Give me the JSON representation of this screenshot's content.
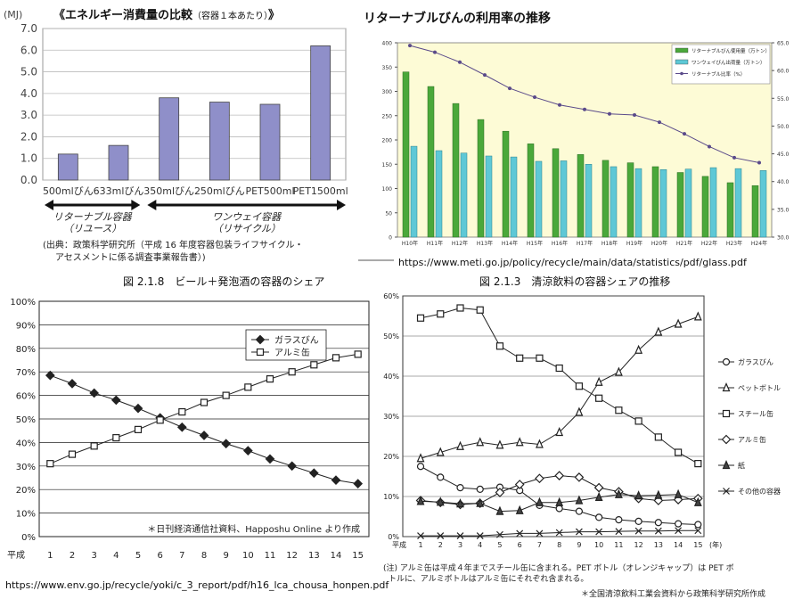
{
  "urls": {
    "meti": "https://www.meti.go.jp/policy/recycle/main/data/statistics/pdf/glass.pdf",
    "env": "https://www.env.go.jp/recycle/yoki/c_3_report/pdf/h16_lca_chousa_honpen.pdf"
  },
  "captions": {
    "beer": "図 2.1.8　ビール＋発泡酒の容器のシェア",
    "soft": "図 2.1.3　清涼飲料の容器シェアの推移"
  },
  "chart_data": [
    {
      "type": "bar",
      "title": "《エネルギー消費量の比較",
      "title_sub": "（容器１本あたり）",
      "title_end": "》",
      "ylabel": "(MJ)",
      "ylim": [
        0,
        7
      ],
      "yticks": [
        "0.0",
        "1.0",
        "2.0",
        "3.0",
        "4.0",
        "5.0",
        "6.0",
        "7.0"
      ],
      "categories": [
        "500mlびん",
        "633mlびん",
        "350mlびん",
        "250mlびん",
        "PET500ml",
        "PET1500ml"
      ],
      "values": [
        1.2,
        1.6,
        3.8,
        3.6,
        3.5,
        6.2
      ],
      "color": "#8f8fc9",
      "groups": [
        {
          "label": "リターナブル容器",
          "sub": "（リユース）"
        },
        {
          "label": "ワンウェイ容器",
          "sub": "（リサイクル）"
        }
      ],
      "source_line1": "(出典：政策科学研究所（平成 16 年度容器包装ライフサイクル・",
      "source_line2": "アセスメントに係る調査事業報告書）)"
    },
    {
      "type": "bar",
      "title": "リターナブルびんの利用率の推移",
      "categories": [
        "H10年",
        "H11年",
        "H12年",
        "H13年",
        "H14年",
        "H15年",
        "H16年",
        "H17年",
        "H18年",
        "H19年",
        "H20年",
        "H21年",
        "H22年",
        "H23年",
        "H24年"
      ],
      "ylim": [
        0,
        400
      ],
      "yticks": [
        "0",
        "50",
        "100",
        "150",
        "200",
        "250",
        "300",
        "350",
        "400"
      ],
      "y2lim": [
        30,
        65
      ],
      "y2ticks": [
        "30.0",
        "35.0",
        "40.0",
        "45.0",
        "50.0",
        "55.0",
        "60.0",
        "65.0"
      ],
      "series": [
        {
          "name": "リターナブルびん使用量（万トン）",
          "color": "#4aa83a",
          "values": [
            340,
            310,
            275,
            242,
            218,
            192,
            182,
            170,
            158,
            153,
            145,
            133,
            125,
            112,
            106
          ]
        },
        {
          "name": "ワンウェイびん出荷量（万トン）",
          "color": "#5ec8d6",
          "values": [
            187,
            178,
            173,
            167,
            165,
            156,
            157,
            150,
            145,
            141,
            139,
            140,
            143,
            141,
            137
          ]
        },
        {
          "name": "リターナブル比率（%）",
          "color": "#5a4a8a",
          "axis": "right",
          "values": [
            64.5,
            63.3,
            61.5,
            59.2,
            56.8,
            55.2,
            53.8,
            53.0,
            52.2,
            52.0,
            50.7,
            48.6,
            46.3,
            44.3,
            43.4
          ]
        }
      ]
    },
    {
      "type": "line",
      "x": [
        "1",
        "2",
        "3",
        "4",
        "5",
        "6",
        "7",
        "8",
        "9",
        "10",
        "11",
        "12",
        "13",
        "14",
        "15"
      ],
      "xprefix": "平成",
      "ylim": [
        0,
        100
      ],
      "yticks": [
        "0%",
        "10%",
        "20%",
        "30%",
        "40%",
        "50%",
        "60%",
        "70%",
        "80%",
        "90%",
        "100%"
      ],
      "series": [
        {
          "name": "ガラスびん",
          "marker": "diamond",
          "values": [
            68.5,
            65,
            61,
            58,
            54.5,
            50.5,
            46.5,
            43,
            39.5,
            36.5,
            33,
            30,
            27,
            24,
            22.5
          ]
        },
        {
          "name": "アルミ缶",
          "marker": "square",
          "values": [
            31,
            35,
            38.5,
            42,
            45.5,
            49.5,
            53,
            57,
            60,
            63.5,
            67,
            70,
            73,
            76,
            77.5
          ]
        }
      ],
      "source": "＊日刊経済通信社資料、Happoshu Online より作成"
    },
    {
      "type": "line",
      "x": [
        "1",
        "2",
        "3",
        "4",
        "5",
        "6",
        "7",
        "8",
        "9",
        "10",
        "11",
        "12",
        "13",
        "14",
        "15"
      ],
      "xprefix": "平成",
      "xsuffix": "(年)",
      "ylim": [
        0,
        60
      ],
      "yticks": [
        "0%",
        "10%",
        "20%",
        "30%",
        "40%",
        "50%",
        "60%"
      ],
      "series": [
        {
          "name": "ガラスびん",
          "marker": "circle",
          "values": [
            17.5,
            14.8,
            12.2,
            11.8,
            12.3,
            11.5,
            7.8,
            7.0,
            6.3,
            4.8,
            4.2,
            3.8,
            3.5,
            3.2,
            3.0
          ]
        },
        {
          "name": "ペットボトル",
          "marker": "triangle",
          "values": [
            19.5,
            21,
            22.5,
            23.5,
            22.8,
            23.5,
            23,
            26,
            31,
            38.5,
            41,
            46.5,
            51,
            53,
            54.8
          ]
        },
        {
          "name": "スチール缶",
          "marker": "square",
          "values": [
            54.5,
            55.5,
            57,
            56.5,
            47.5,
            44.5,
            44.5,
            42,
            37.5,
            34.5,
            31.5,
            28.8,
            24.8,
            21,
            18.2
          ]
        },
        {
          "name": "アルミ缶",
          "marker": "diamond",
          "values": [
            9,
            8.5,
            8,
            8.3,
            11,
            13,
            14.5,
            15.2,
            14.8,
            12.2,
            11.2,
            9.5,
            9.0,
            9.2,
            9.5
          ]
        },
        {
          "name": "紙",
          "marker": "filled-triangle",
          "values": [
            8.8,
            8.6,
            8.2,
            8.3,
            6.3,
            6.5,
            8.5,
            8.5,
            9.0,
            9.8,
            10.5,
            10.2,
            10.3,
            10.5,
            8.5
          ]
        },
        {
          "name": "その他の容器",
          "marker": "x",
          "values": [
            0.2,
            0.2,
            0.2,
            0.2,
            0.5,
            0.8,
            0.8,
            1.0,
            1.2,
            1.2,
            1.3,
            1.4,
            1.4,
            1.5,
            1.5
          ]
        }
      ],
      "note_line1": "(注) アルミ缶は平成４年までスチール缶に含まれる。PET ボトル（オレンジキャップ）は PET ボ",
      "note_line2": "トルに、アルミボトルはアルミ缶にそれぞれ含まれる。",
      "source": "＊全国清涼飲料工業会資料から政策科学研究所作成"
    }
  ]
}
